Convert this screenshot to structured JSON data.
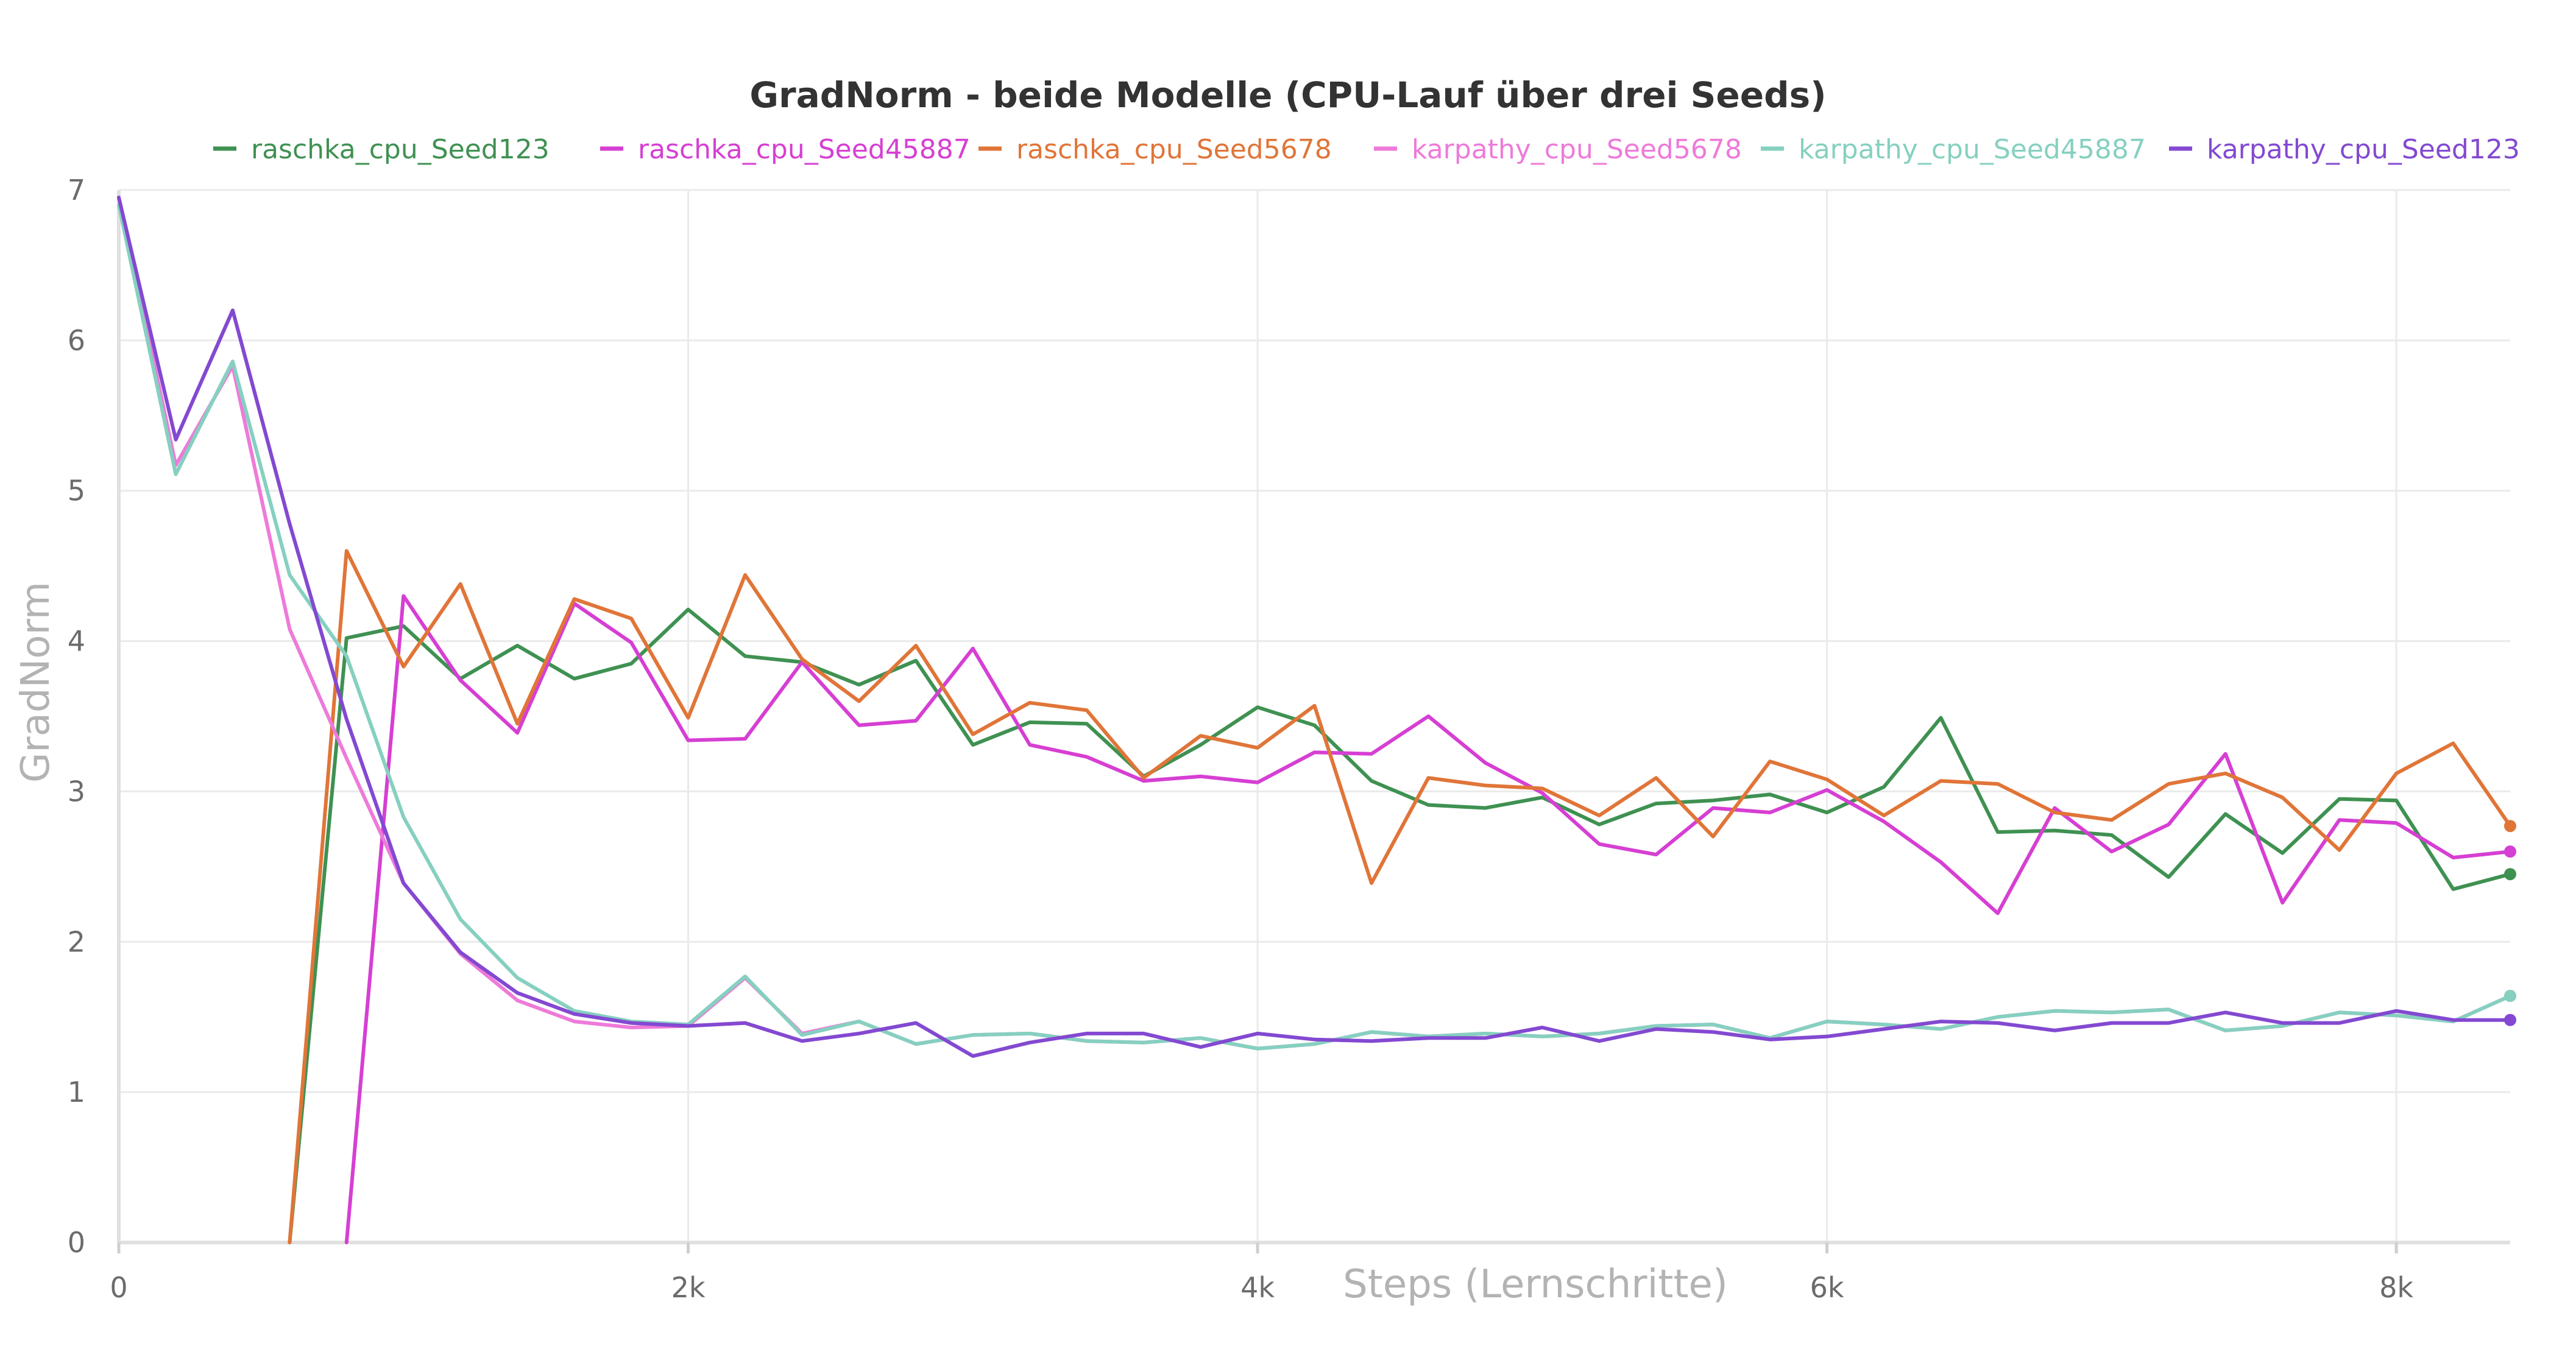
{
  "chart_data": {
    "type": "line",
    "title": "GradNorm - beide Modelle (CPU-Lauf über drei Seeds)",
    "xlabel": "Steps (Lernschritte)",
    "ylabel": "GradNorm",
    "xlim": [
      0,
      8400
    ],
    "ylim": [
      0,
      7
    ],
    "x_ticks": [
      0,
      2000,
      4000,
      6000,
      8000
    ],
    "x_tick_labels": [
      "0",
      "2k",
      "4k",
      "6k",
      "8k"
    ],
    "y_ticks": [
      0,
      1,
      2,
      3,
      4,
      5,
      6,
      7
    ],
    "y_tick_labels": [
      "0",
      "1",
      "2",
      "3",
      "4",
      "5",
      "6",
      "7"
    ],
    "grid": true,
    "legend_position": "top",
    "series": [
      {
        "name": "raschka_cpu_Seed123",
        "color": "#3f9152",
        "x": [
          600,
          800,
          1000,
          1200,
          1400,
          1600,
          1800,
          2000,
          2200,
          2400,
          2600,
          2800,
          3000,
          3200,
          3400,
          3600,
          3800,
          4000,
          4200,
          4400,
          4600,
          4800,
          5000,
          5200,
          5400,
          5600,
          5800,
          6000,
          6200,
          6400,
          6600,
          6800,
          7000,
          7200,
          7400,
          7600,
          7800,
          8000,
          8200,
          8400
        ],
        "values": [
          0,
          4.02,
          4.1,
          3.75,
          3.97,
          3.75,
          3.85,
          4.21,
          3.9,
          3.86,
          3.71,
          3.87,
          3.31,
          3.46,
          3.45,
          3.1,
          3.31,
          3.56,
          3.44,
          3.07,
          2.91,
          2.89,
          2.96,
          2.78,
          2.92,
          2.94,
          2.98,
          2.86,
          3.03,
          3.49,
          2.73,
          2.74,
          2.71,
          2.43,
          2.85,
          2.59,
          2.95,
          2.94,
          2.35,
          2.45
        ]
      },
      {
        "name": "raschka_cpu_Seed45887",
        "color": "#d63fd3",
        "x": [
          800,
          1000,
          1200,
          1400,
          1600,
          1800,
          2000,
          2200,
          2400,
          2600,
          2800,
          3000,
          3200,
          3400,
          3600,
          3800,
          4000,
          4200,
          4400,
          4600,
          4800,
          5000,
          5200,
          5400,
          5600,
          5800,
          6000,
          6200,
          6400,
          6600,
          6800,
          7000,
          7200,
          7400,
          7600,
          7800,
          8000,
          8200,
          8400
        ],
        "values": [
          0,
          4.3,
          3.74,
          3.39,
          4.25,
          3.99,
          3.34,
          3.35,
          3.86,
          3.44,
          3.47,
          3.95,
          3.31,
          3.23,
          3.07,
          3.1,
          3.06,
          3.26,
          3.25,
          3.5,
          3.19,
          2.99,
          2.65,
          2.58,
          2.89,
          2.86,
          3.01,
          2.8,
          2.53,
          2.19,
          2.89,
          2.6,
          2.78,
          3.25,
          2.26,
          2.81,
          2.79,
          2.56,
          2.6
        ]
      },
      {
        "name": "raschka_cpu_Seed5678",
        "color": "#e07538",
        "x": [
          600,
          800,
          1000,
          1200,
          1400,
          1600,
          1800,
          2000,
          2200,
          2400,
          2600,
          2800,
          3000,
          3200,
          3400,
          3600,
          3800,
          4000,
          4200,
          4400,
          4600,
          4800,
          5000,
          5200,
          5400,
          5600,
          5800,
          6000,
          6200,
          6400,
          6600,
          6800,
          7000,
          7200,
          7400,
          7600,
          7800,
          8000,
          8200,
          8400
        ],
        "values": [
          0,
          4.6,
          3.83,
          4.38,
          3.45,
          4.28,
          4.15,
          3.49,
          4.44,
          3.88,
          3.6,
          3.97,
          3.38,
          3.59,
          3.54,
          3.09,
          3.37,
          3.29,
          3.57,
          2.39,
          3.09,
          3.04,
          3.02,
          2.84,
          3.09,
          2.7,
          3.2,
          3.08,
          2.84,
          3.07,
          3.05,
          2.86,
          2.81,
          3.05,
          3.12,
          2.96,
          2.61,
          3.12,
          3.32,
          2.77
        ]
      },
      {
        "name": "karpathy_cpu_Seed5678",
        "color": "#ee7ad9",
        "x": [
          0,
          200,
          400,
          600,
          800,
          1000,
          1200,
          1400,
          1600,
          1800,
          2000,
          2200,
          2400,
          2600,
          2800,
          3000,
          3200,
          3400,
          3600,
          3800,
          4000,
          4200,
          4400,
          4600,
          4800,
          5000,
          5200,
          5400,
          5600,
          5800,
          6000,
          6200,
          6400,
          6600,
          6800,
          7000,
          7200,
          7400,
          7600,
          7800,
          8000,
          8200,
          8400
        ],
        "values": [
          6.95,
          5.17,
          5.83,
          4.08,
          3.22,
          2.39,
          1.92,
          1.61,
          1.47,
          1.43,
          1.44,
          1.76,
          1.39,
          1.47,
          1.32,
          1.38,
          1.39,
          1.34,
          1.33,
          1.36,
          1.29,
          1.32,
          1.4,
          1.37,
          1.39,
          1.37,
          1.39,
          1.44,
          1.45,
          1.36,
          1.47,
          1.45,
          1.42,
          1.5,
          1.54,
          1.53,
          1.55,
          1.41,
          1.44,
          1.53,
          1.51,
          1.47,
          1.64
        ]
      },
      {
        "name": "karpathy_cpu_Seed45887",
        "color": "#86d0c0",
        "x": [
          0,
          200,
          400,
          600,
          800,
          1000,
          1200,
          1400,
          1600,
          1800,
          2000,
          2200,
          2400,
          2600,
          2800,
          3000,
          3200,
          3400,
          3600,
          3800,
          4000,
          4200,
          4400,
          4600,
          4800,
          5000,
          5200,
          5400,
          5600,
          5800,
          6000,
          6200,
          6400,
          6600,
          6800,
          7000,
          7200,
          7400,
          7600,
          7800,
          8000,
          8200,
          8400
        ],
        "values": [
          6.9,
          5.11,
          5.86,
          4.44,
          3.9,
          2.83,
          2.15,
          1.76,
          1.54,
          1.47,
          1.45,
          1.77,
          1.38,
          1.47,
          1.32,
          1.38,
          1.39,
          1.34,
          1.33,
          1.36,
          1.29,
          1.32,
          1.4,
          1.37,
          1.39,
          1.37,
          1.39,
          1.44,
          1.45,
          1.36,
          1.47,
          1.45,
          1.42,
          1.5,
          1.54,
          1.53,
          1.55,
          1.41,
          1.44,
          1.53,
          1.51,
          1.47,
          1.64
        ]
      },
      {
        "name": "karpathy_cpu_Seed123",
        "color": "#8349d1",
        "x": [
          0,
          200,
          400,
          600,
          800,
          1000,
          1200,
          1400,
          1600,
          1800,
          2000,
          2200,
          2400,
          2600,
          2800,
          3000,
          3200,
          3400,
          3600,
          3800,
          4000,
          4200,
          4400,
          4600,
          4800,
          5000,
          5200,
          5400,
          5600,
          5800,
          6000,
          6200,
          6400,
          6600,
          6800,
          7000,
          7200,
          7400,
          7600,
          7800,
          8000,
          8200,
          8400
        ],
        "values": [
          6.95,
          5.34,
          6.2,
          4.78,
          3.48,
          2.39,
          1.93,
          1.66,
          1.52,
          1.46,
          1.44,
          1.46,
          1.34,
          1.39,
          1.46,
          1.24,
          1.33,
          1.39,
          1.39,
          1.3,
          1.39,
          1.35,
          1.34,
          1.36,
          1.36,
          1.43,
          1.34,
          1.42,
          1.4,
          1.35,
          1.37,
          1.42,
          1.47,
          1.46,
          1.41,
          1.46,
          1.46,
          1.53,
          1.46,
          1.46,
          1.54,
          1.48,
          1.48
        ]
      }
    ]
  }
}
